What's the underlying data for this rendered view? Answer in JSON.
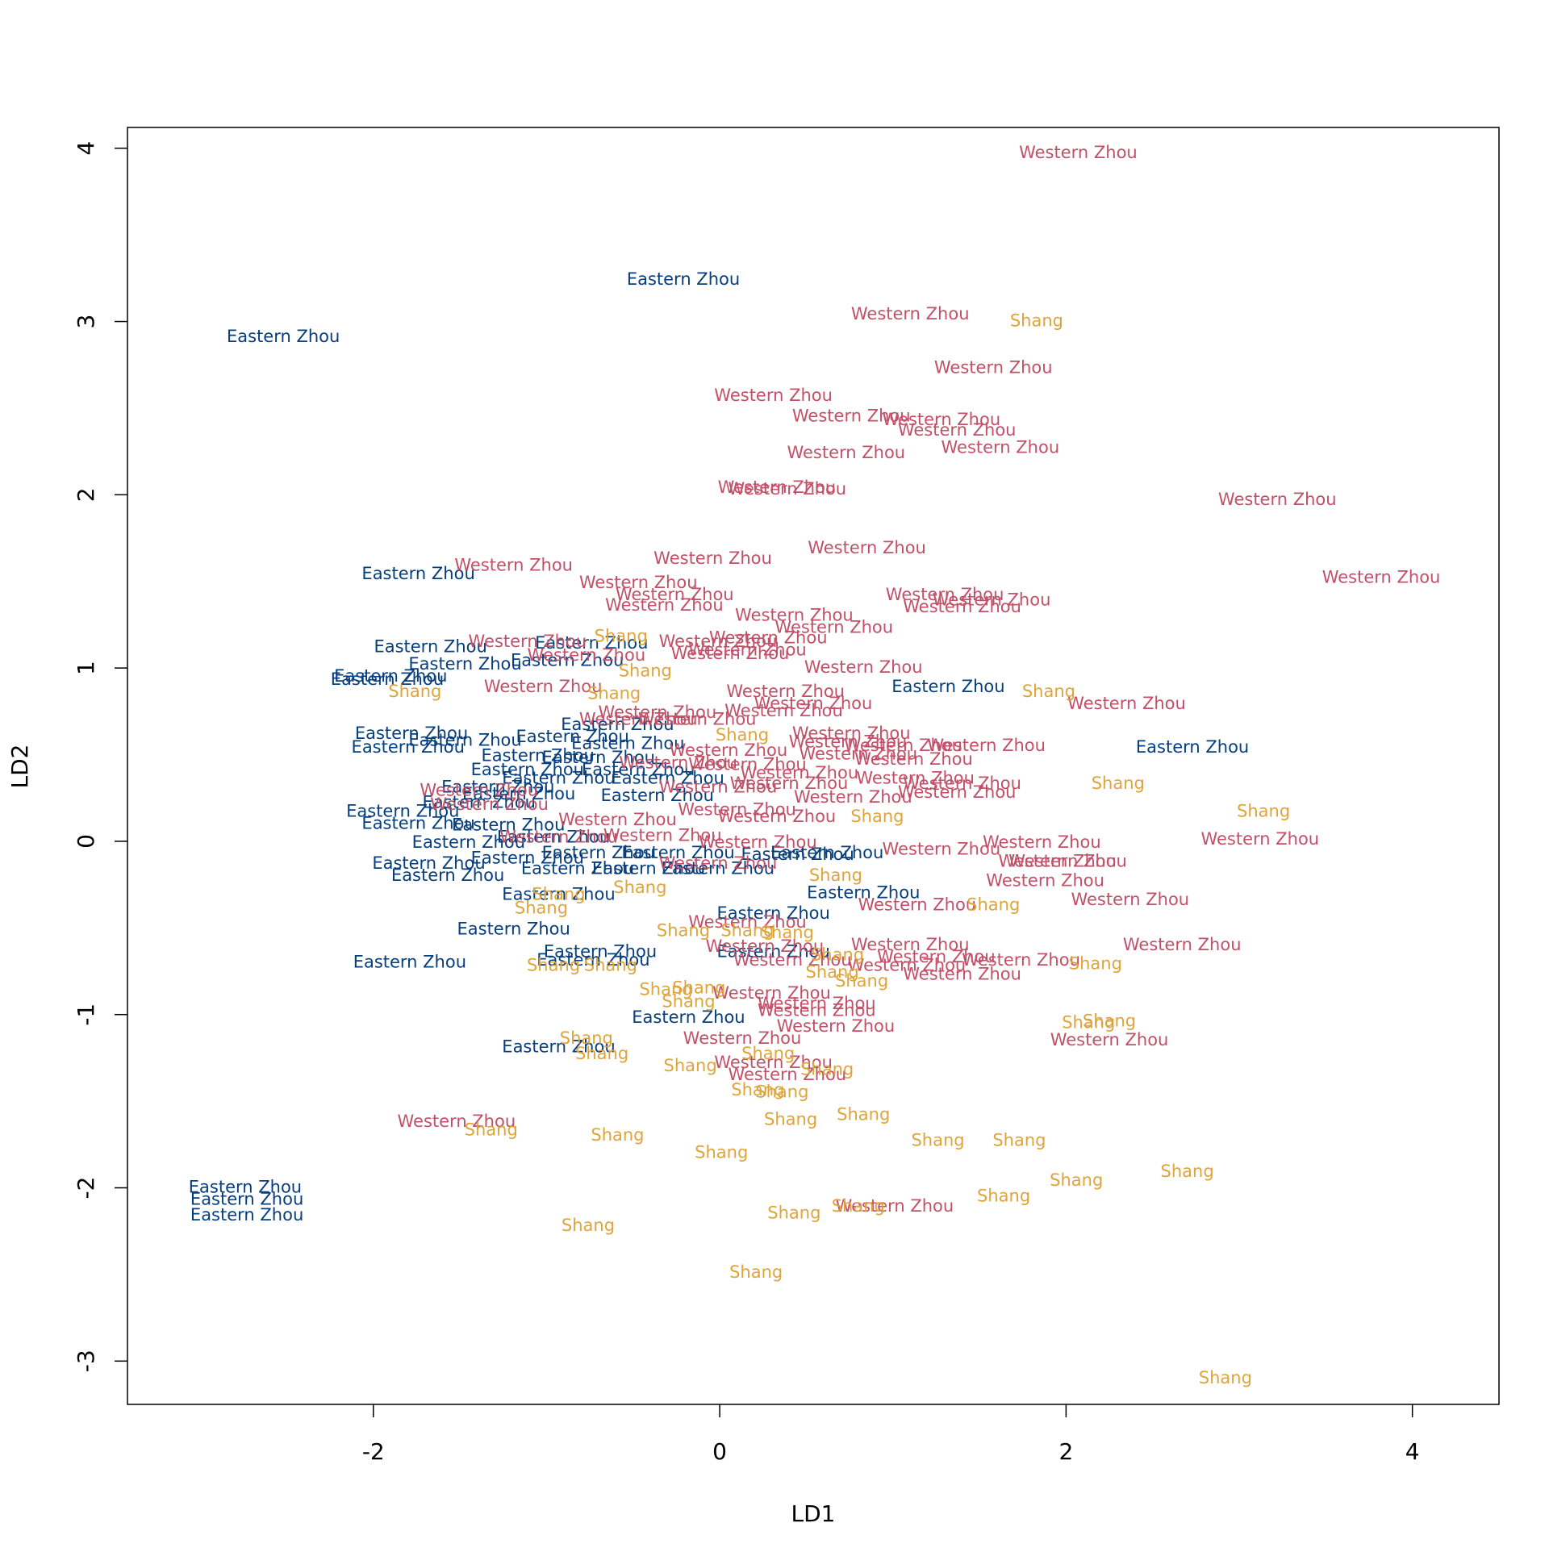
{
  "chart_data": {
    "type": "text-scatter",
    "xlabel": "LD1",
    "ylabel": "LD2",
    "xlim": [
      -3.42,
      4.5
    ],
    "ylim": [
      -3.25,
      4.12
    ],
    "xticks": [
      -2,
      0,
      2,
      4
    ],
    "yticks": [
      -3,
      -2,
      -1,
      0,
      1,
      2,
      3,
      4
    ],
    "series": [
      {
        "name": "Eastern Zhou",
        "color": "#063e7e",
        "x": [
          -0.21,
          -2.52,
          -1.74,
          -1.67,
          -1.47,
          -1.9,
          -1.92,
          -0.74,
          -0.88,
          1.32,
          2.73,
          -1.78,
          -1.8,
          -1.47,
          -0.59,
          -0.85,
          -0.53,
          -1.05,
          -0.7,
          -1.11,
          -0.47,
          -0.93,
          -0.3,
          -1.28,
          -1.16,
          -0.36,
          -1.83,
          -1.39,
          -1.74,
          -1.22,
          -0.96,
          -1.45,
          -1.68,
          -1.57,
          -1.11,
          -0.82,
          -0.24,
          -0.01,
          0.45,
          0.62,
          -0.93,
          0.83,
          0.31,
          -1.19,
          -1.79,
          -0.69,
          -0.73,
          0.31,
          -0.18,
          -0.93,
          -2.74,
          -2.73,
          -2.73,
          -0.41,
          -0.7
        ],
        "y": [
          3.24,
          2.91,
          1.54,
          1.12,
          1.02,
          0.95,
          0.93,
          1.14,
          1.04,
          0.89,
          0.54,
          0.62,
          0.54,
          0.58,
          0.67,
          0.6,
          0.56,
          0.49,
          0.48,
          0.41,
          0.41,
          0.36,
          0.36,
          0.31,
          0.27,
          0.26,
          0.17,
          0.22,
          0.1,
          0.09,
          0.02,
          -0.01,
          -0.13,
          -0.2,
          -0.1,
          -0.16,
          -0.07,
          -0.16,
          -0.08,
          -0.07,
          -0.31,
          -0.3,
          -0.42,
          -0.51,
          -0.7,
          -0.64,
          -0.69,
          -0.64,
          -1.02,
          -1.19,
          -2.0,
          -2.07,
          -2.16,
          -0.16,
          -0.07
        ]
      },
      {
        "name": "Western Zhou",
        "color": "#c25068",
        "x": [
          2.07,
          1.1,
          1.58,
          0.31,
          0.76,
          1.28,
          1.37,
          1.62,
          0.73,
          0.33,
          0.39,
          3.22,
          0.85,
          -0.04,
          -1.19,
          3.82,
          -0.47,
          -0.26,
          -0.32,
          1.3,
          1.4,
          1.57,
          0.43,
          0.66,
          -1.11,
          -0.01,
          0.28,
          0.16,
          -0.77,
          0.06,
          0.83,
          -1.02,
          0.38,
          0.54,
          2.35,
          -0.36,
          0.37,
          -0.47,
          -0.13,
          0.76,
          0.74,
          1.06,
          1.54,
          0.05,
          0.8,
          1.12,
          0.16,
          -0.24,
          0.46,
          1.13,
          1.4,
          0.4,
          1.37,
          0.77,
          -0.01,
          0.1,
          0.33,
          -1.39,
          -1.33,
          -0.59,
          -0.33,
          0.22,
          1.86,
          3.12,
          1.28,
          1.95,
          2.01,
          1.88,
          1.14,
          2.37,
          -0.01,
          0.16,
          0.26,
          1.1,
          2.67,
          1.25,
          1.74,
          0.42,
          1.08,
          1.4,
          0.3,
          0.56,
          0.56,
          0.67,
          0.13,
          0.31,
          0.39,
          2.25,
          -1.52,
          1.01,
          -0.93
        ],
        "y": [
          3.97,
          3.04,
          2.73,
          2.57,
          2.45,
          2.43,
          2.37,
          2.27,
          2.24,
          2.04,
          2.03,
          1.97,
          1.69,
          1.63,
          1.59,
          1.52,
          1.49,
          1.42,
          1.36,
          1.42,
          1.35,
          1.39,
          1.3,
          1.23,
          1.15,
          1.15,
          1.17,
          1.1,
          1.07,
          1.08,
          1.0,
          0.89,
          0.86,
          0.79,
          0.79,
          0.74,
          0.75,
          0.7,
          0.7,
          0.62,
          0.57,
          0.55,
          0.55,
          0.52,
          0.5,
          0.47,
          0.44,
          0.45,
          0.39,
          0.36,
          0.33,
          0.33,
          0.28,
          0.25,
          0.31,
          0.18,
          0.14,
          0.29,
          0.21,
          0.12,
          0.03,
          -0.01,
          -0.01,
          0.01,
          -0.05,
          -0.12,
          -0.12,
          -0.23,
          -0.37,
          -0.34,
          -0.13,
          -0.47,
          -0.61,
          -0.6,
          -0.6,
          -0.67,
          -0.69,
          -0.69,
          -0.72,
          -0.77,
          -0.88,
          -0.94,
          -0.98,
          -1.07,
          -1.14,
          -1.28,
          -1.35,
          -1.15,
          -1.62,
          -2.11,
          0.02
        ]
      },
      {
        "name": "Shang",
        "color": "#dfa43a",
        "x": [
          1.83,
          -0.57,
          -0.43,
          -0.61,
          -1.76,
          1.9,
          0.13,
          2.3,
          3.14,
          0.91,
          0.67,
          -0.46,
          1.58,
          -1.03,
          -0.93,
          -0.21,
          0.16,
          0.39,
          0.68,
          2.17,
          -0.96,
          -0.63,
          0.65,
          0.82,
          -0.31,
          -0.12,
          -0.18,
          2.25,
          2.13,
          -0.77,
          -0.68,
          0.28,
          -0.17,
          0.62,
          0.22,
          0.36,
          0.41,
          0.83,
          -1.32,
          -0.59,
          0.01,
          1.26,
          1.73,
          2.7,
          2.06,
          1.64,
          0.8,
          0.43,
          -0.76,
          0.21,
          2.92
        ],
        "y": [
          3.0,
          1.18,
          0.98,
          0.85,
          0.86,
          0.86,
          0.61,
          0.33,
          0.17,
          0.14,
          -0.2,
          -0.27,
          -0.37,
          -0.39,
          -0.31,
          -0.52,
          -0.52,
          -0.53,
          -0.66,
          -0.71,
          -0.72,
          -0.72,
          -0.76,
          -0.81,
          -0.86,
          -0.85,
          -0.93,
          -1.04,
          -1.05,
          -1.14,
          -1.23,
          -1.23,
          -1.3,
          -1.32,
          -1.44,
          -1.45,
          -1.61,
          -1.58,
          -1.67,
          -1.7,
          -1.8,
          -1.73,
          -1.73,
          -1.91,
          -1.96,
          -2.05,
          -2.11,
          -2.15,
          -2.22,
          -2.49,
          -3.1
        ]
      }
    ]
  }
}
